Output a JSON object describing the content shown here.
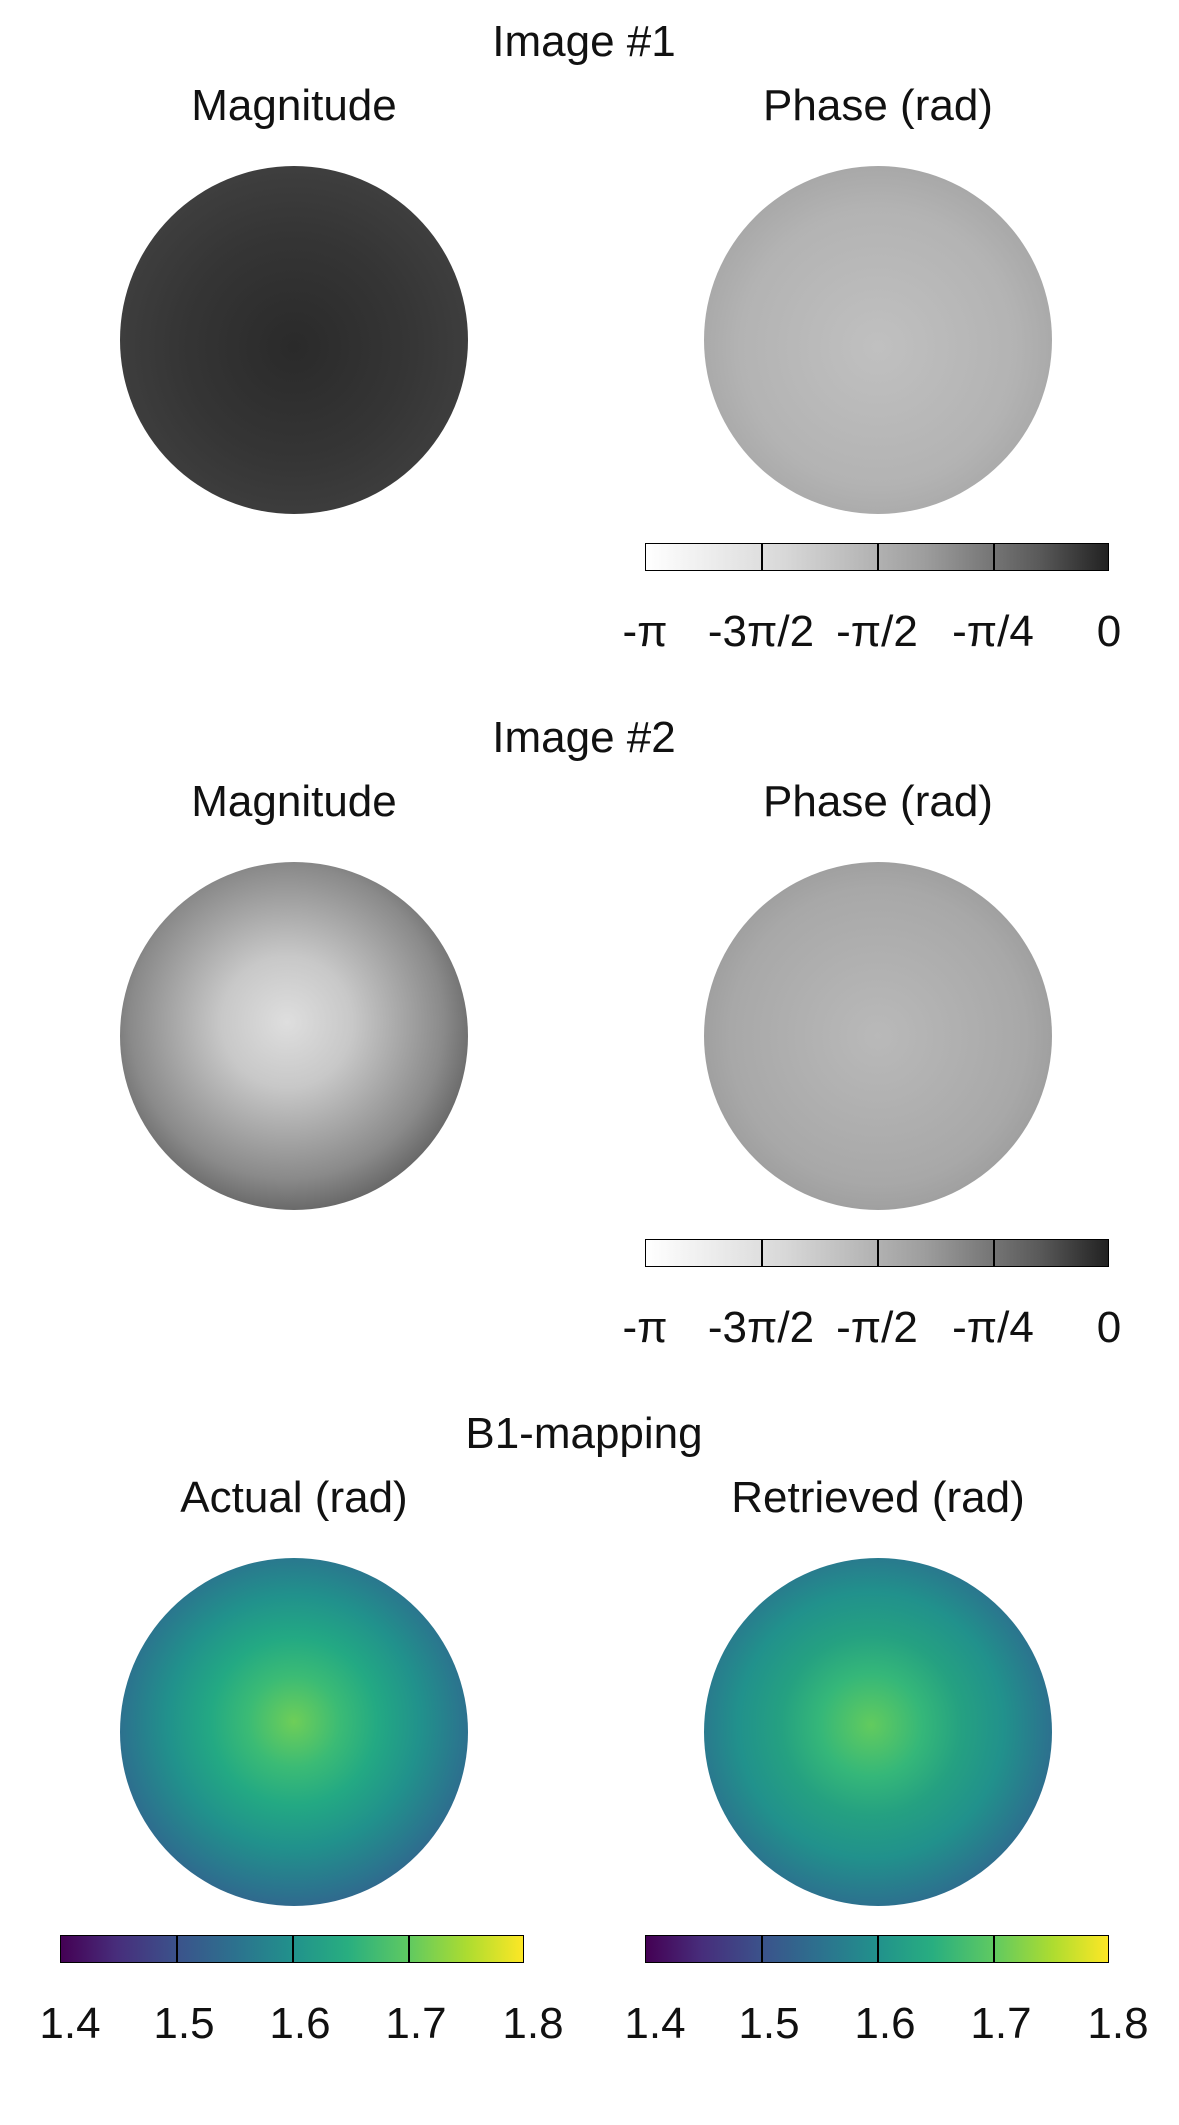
{
  "sections": [
    {
      "title": "Image #1",
      "left_title": "Magnitude",
      "right_title": "Phase (rad)",
      "right_colorbar_ticks": [
        "-π",
        "-3π/2",
        "-π/2",
        "-π/4",
        "0"
      ]
    },
    {
      "title": "Image #2",
      "left_title": "Magnitude",
      "right_title": "Phase (rad)",
      "right_colorbar_ticks": [
        "-π",
        "-3π/2",
        "-π/2",
        "-π/4",
        "0"
      ]
    },
    {
      "title": "B1-mapping",
      "left_title": "Actual (rad)",
      "right_title": "Retrieved (rad)",
      "left_colorbar_ticks": [
        "1.4",
        "1.5",
        "1.6",
        "1.7",
        "1.8"
      ],
      "right_colorbar_ticks": [
        "1.4",
        "1.5",
        "1.6",
        "1.7",
        "1.8"
      ]
    }
  ],
  "colormaps": {
    "phase": "gray",
    "b1": "viridis"
  }
}
